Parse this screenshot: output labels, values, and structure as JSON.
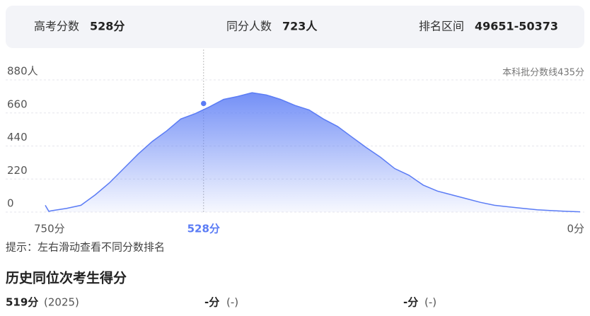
{
  "header": {
    "items": [
      {
        "label": "高考分数",
        "value": "528分"
      },
      {
        "label": "同分人数",
        "value": "723人"
      },
      {
        "label": "排名区间",
        "value": "49651-50373"
      }
    ]
  },
  "chart_data": {
    "type": "area",
    "annotation": "本科批分数线435分",
    "color": "#5b7cf5",
    "x": [
      750,
      745,
      740,
      720,
      700,
      680,
      660,
      640,
      620,
      600,
      580,
      560,
      540,
      520,
      500,
      480,
      460,
      440,
      420,
      400,
      380,
      360,
      340,
      320,
      300,
      280,
      260,
      240,
      220,
      200,
      180,
      160,
      140,
      120,
      100,
      80,
      60,
      40,
      20,
      0
    ],
    "values": [
      45,
      5,
      10,
      25,
      45,
      115,
      195,
      290,
      385,
      470,
      540,
      620,
      655,
      700,
      750,
      770,
      795,
      780,
      750,
      710,
      680,
      620,
      570,
      500,
      430,
      365,
      290,
      245,
      180,
      140,
      115,
      90,
      65,
      45,
      35,
      25,
      15,
      10,
      5,
      2
    ],
    "xlim": [
      750,
      0
    ],
    "xticks": [
      {
        "value": 750,
        "label": "750分"
      },
      {
        "value": 528,
        "label": "528分"
      },
      {
        "value": 0,
        "label": "0分"
      }
    ],
    "ylim": [
      0,
      880
    ],
    "yticks": [
      0,
      220,
      440,
      660,
      {
        "value": 880,
        "label": "880人"
      }
    ],
    "grid": true,
    "marker": {
      "x": 528,
      "y": 723
    }
  },
  "hint": "提示：左右滑动查看不同分数排名",
  "history": {
    "title": "历史同位次考生得分",
    "rows": [
      {
        "score": "519分",
        "year": "(2025)"
      },
      {
        "score": "-分",
        "year": "(-)"
      },
      {
        "score": "-分",
        "year": "(-)"
      }
    ]
  }
}
